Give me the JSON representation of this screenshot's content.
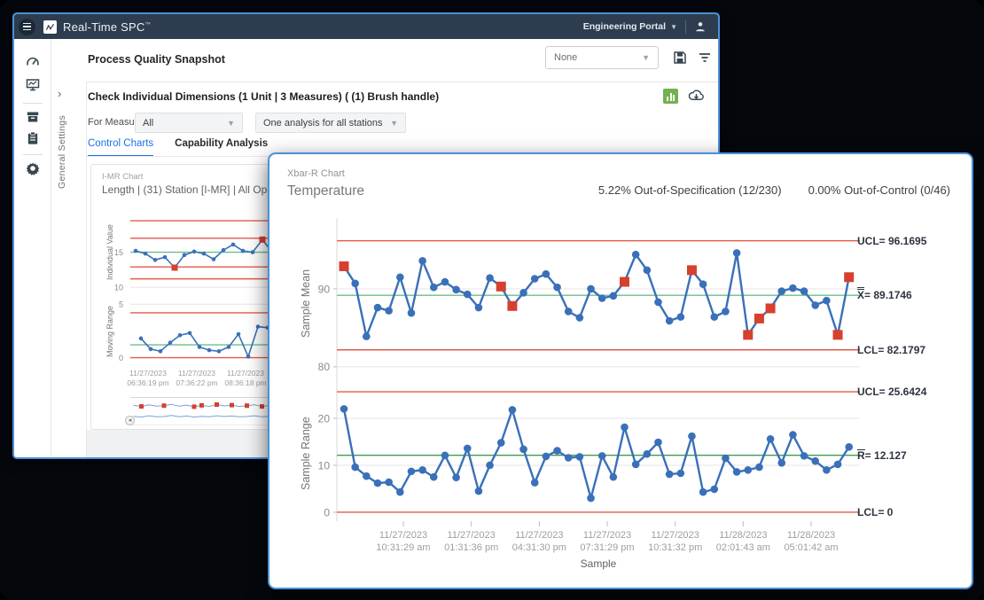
{
  "colors": {
    "accent_blue": "#1a73e8",
    "window_border": "#4a90d9",
    "topbar_bg": "#2d3c4e",
    "series_blue": "#3a70b9",
    "nav_blue": "#7aa3d4",
    "flag_red": "#d6402e",
    "limit_red": "#e25a4a",
    "center_green_light": "#6cbd8c",
    "center_green": "#3f9b4f",
    "button_green": "#73b152",
    "grid_gray": "#e4e4e4"
  },
  "topbar": {
    "app_name": "Real-Time SPC",
    "trademark": "™",
    "portal_label": "Engineering Portal"
  },
  "header": {
    "title": "Process Quality Snapshot",
    "preset_value": "None"
  },
  "sidebar": {
    "icons": [
      "dashboard-gauge",
      "monitor-chart",
      "archive-box",
      "clipboard",
      "settings-gear"
    ]
  },
  "rail": {
    "label": "General Settings",
    "chevron": "›"
  },
  "panel": {
    "title": "Check Individual Dimensions (1 Unit | 3 Measures) ( (1) Brush handle)",
    "for_measure_label": "For Measure:",
    "measure_value": "All",
    "analysis_value": "One analysis for all stations",
    "tab_control": "Control Charts",
    "tab_capability": "Capability Analysis"
  },
  "imr": {
    "pretitle": "I-MR Chart",
    "subtitle": "Length | (31) Station [I-MR] | All Operators",
    "y1_label": "Individual Value",
    "y2_label": "Moving Range",
    "x_ticks": [
      {
        "date": "11/27/2023",
        "time": "06:36:19 pm"
      },
      {
        "date": "11/27/2023",
        "time": "07:36:22 pm"
      },
      {
        "date": "11/27/2023",
        "time": "08:36:18 pm"
      }
    ]
  },
  "overlay": {
    "pretitle": "Xbar-R Chart",
    "title": "Temperature",
    "out_of_spec": "5.22% Out-of-Specification (12/230)",
    "out_of_control": "0.00% Out-of-Control (0/46)",
    "y1_label": "Sample Mean",
    "y2_label": "Sample Range",
    "x_axis_title": "Sample",
    "xbar_labels": {
      "ucl": "UCL= 96.1695",
      "center_letter": "X",
      "center_value": "= 89.1746",
      "lcl": "LCL= 82.1797"
    },
    "range_labels": {
      "ucl": "UCL= 25.6424",
      "center_letter": "R",
      "center_value": "= 12.127",
      "lcl": "LCL= 0"
    },
    "x_ticks": [
      {
        "date": "11/27/2023",
        "time": "10:31:29 am"
      },
      {
        "date": "11/27/2023",
        "time": "01:31:36 pm"
      },
      {
        "date": "11/27/2023",
        "time": "04:31:30 pm"
      },
      {
        "date": "11/27/2023",
        "time": "07:31:29 pm"
      },
      {
        "date": "11/27/2023",
        "time": "10:31:32 pm"
      },
      {
        "date": "11/28/2023",
        "time": "02:01:43 am"
      },
      {
        "date": "11/28/2023",
        "time": "05:01:42 am"
      }
    ]
  },
  "chart_data": [
    {
      "id": "xbar",
      "type": "line",
      "title": "Temperature — Xbar chart",
      "xlabel": "Sample",
      "ylabel": "Sample Mean",
      "ucl": 96.1695,
      "center": 89.1746,
      "lcl": 82.1797,
      "ylim": [
        78.4,
        97.95
      ],
      "grid": [
        {
          "v": 90,
          "label": "90"
        },
        {
          "v": 80,
          "label": "80"
        }
      ],
      "lines": [
        {
          "v": 96.1695,
          "color": "limit_red"
        },
        {
          "v": 89.1746,
          "color": "center_green_light"
        },
        {
          "v": 82.1797,
          "color": "limit_red"
        }
      ],
      "series": [
        {
          "name": "Sample Mean",
          "color": "series_blue",
          "values": [
            92.9,
            90.7,
            83.9,
            87.6,
            87.2,
            91.5,
            86.9,
            93.6,
            90.2,
            90.9,
            89.9,
            89.3,
            87.6,
            91.4,
            90.3,
            87.8,
            89.5,
            91.3,
            91.9,
            90.2,
            87.1,
            86.3,
            90.0,
            88.8,
            89.1,
            90.9,
            94.4,
            92.4,
            88.3,
            85.9,
            86.4,
            92.4,
            90.6,
            86.4,
            87.1,
            94.6,
            84.1,
            86.2,
            87.5,
            89.7,
            90.1,
            89.7,
            87.9,
            88.5,
            84.1,
            91.5
          ],
          "flags": [
            0,
            14,
            15,
            25,
            31,
            36,
            37,
            38,
            44,
            45
          ]
        }
      ]
    },
    {
      "id": "range",
      "type": "line",
      "title": "Temperature — R chart",
      "xlabel": "Sample",
      "ylabel": "Sample Range",
      "ucl": 25.6424,
      "center": 12.127,
      "lcl": 0,
      "ylim": [
        -1.89,
        26.79
      ],
      "grid": [
        {
          "v": 20,
          "label": "20"
        },
        {
          "v": 10,
          "label": "10"
        },
        {
          "v": 0,
          "label": "0"
        }
      ],
      "lines": [
        {
          "v": 25.6424,
          "color": "limit_red"
        },
        {
          "v": 12.127,
          "color": "center_green"
        },
        {
          "v": 0,
          "color": "limit_red"
        }
      ],
      "series": [
        {
          "name": "Sample Range",
          "color": "series_blue",
          "values": [
            22.0,
            9.6,
            7.7,
            6.2,
            6.4,
            4.3,
            8.7,
            9.0,
            7.5,
            12.1,
            7.4,
            13.6,
            4.5,
            10.0,
            14.8,
            21.8,
            13.4,
            6.3,
            11.9,
            13.1,
            11.6,
            11.8,
            3.0,
            12.0,
            7.5,
            18.1,
            10.2,
            12.4,
            14.9,
            8.1,
            8.3,
            16.2,
            4.3,
            4.9,
            11.5,
            8.6,
            9.0,
            9.6,
            15.6,
            10.5,
            16.5,
            12.0,
            10.9,
            9.0,
            10.2,
            13.9
          ],
          "flags": []
        }
      ]
    },
    {
      "id": "imr-individual",
      "type": "line",
      "title": "Length — Individuals chart",
      "ylabel": "Individual Value",
      "ylim": [
        9.0,
        20.9
      ],
      "grid": [
        {
          "v": 15,
          "label": "15"
        },
        {
          "v": 10,
          "label": "10"
        }
      ],
      "lines": [
        {
          "v": 19.5,
          "color": "limit_red"
        },
        {
          "v": 17.0,
          "color": "limit_red"
        },
        {
          "v": 15.0,
          "color": "center_green_light"
        },
        {
          "v": 12.9,
          "color": "limit_red"
        },
        {
          "v": 11.2,
          "color": "limit_red"
        }
      ],
      "series": [
        {
          "name": "Individual Value",
          "color": "series_blue",
          "values": [
            15.2,
            14.8,
            13.9,
            14.3,
            12.8,
            14.6,
            15.1,
            14.8,
            14.0,
            15.3,
            16.1,
            15.2,
            15.0,
            16.8,
            15.0,
            13.7,
            14.2,
            14.0,
            14.5,
            15.2,
            14.6,
            14.9,
            14.3,
            15.5,
            14.8,
            12.7,
            13.9,
            14.6,
            15.1,
            14.4,
            15.7,
            14.9,
            15.2,
            14.5,
            15.0,
            15.4,
            14.7,
            15.1,
            14.6,
            14.9,
            15.3,
            14.8,
            15.1,
            14.7,
            16.5
          ],
          "flags": [
            4,
            13,
            25
          ]
        }
      ]
    },
    {
      "id": "imr-mr",
      "type": "line",
      "title": "Length — Moving Range chart",
      "ylabel": "Moving Range",
      "ylim": [
        -0.7,
        5.6
      ],
      "grid": [
        {
          "v": 5,
          "label": "5"
        },
        {
          "v": 0,
          "label": "0"
        }
      ],
      "lines": [
        {
          "v": 4.2,
          "color": "limit_red"
        },
        {
          "v": 1.2,
          "color": "center_green_light"
        },
        {
          "v": 0,
          "color": "limit_red"
        }
      ],
      "series": [
        {
          "name": "Moving Range",
          "color": "series_blue",
          "values": [
            1.8,
            0.8,
            0.6,
            1.4,
            2.1,
            2.3,
            1.0,
            0.7,
            0.6,
            1.0,
            2.2,
            0.1,
            2.9,
            2.8,
            1.2,
            0.5,
            0.3,
            0.9,
            1.3,
            1.3,
            1.2,
            1.0,
            1.4,
            1.3,
            0.6,
            0.9,
            0.4,
            1.1,
            0.7,
            1.2,
            0.9,
            1.5,
            0.6,
            0.8,
            1.1,
            0.7,
            1.0,
            0.6,
            0.9,
            0.7,
            1.1,
            0.8,
            0.6,
            3.5
          ],
          "flags": []
        }
      ]
    },
    {
      "id": "imr-nav",
      "type": "line",
      "title": "Range navigator",
      "ylim": [
        0,
        10
      ],
      "grid": [],
      "lines": [],
      "series": [
        {
          "name": "navigator-individuals",
          "color": "nav_blue",
          "markers": false,
          "values": [
            7.2,
            6.8,
            7.4,
            6.9,
            7.1,
            7.6,
            6.9,
            7.3,
            6.7,
            7.2,
            6.8,
            7.5,
            7.0,
            7.3,
            6.8,
            7.1,
            7.4,
            6.8,
            7.2,
            6.9,
            7.3,
            6.8,
            7.1,
            7.0,
            7.4,
            6.8,
            7.2,
            6.9,
            7.3,
            7.0,
            7.1,
            6.8,
            7.3,
            7.0,
            7.2,
            6.9,
            7.4,
            7.0,
            7.1,
            6.9,
            7.3,
            7.0,
            7.2,
            6.8,
            7.1,
            7.0,
            7.3,
            6.9,
            7.2,
            7.0,
            7.1,
            6.9,
            7.3,
            7.0,
            7.2,
            6.9,
            7.1,
            7.0,
            7.2,
            7.0
          ],
          "flags": [
            1,
            4,
            8,
            9,
            11,
            13,
            15,
            17,
            21,
            26,
            30,
            35,
            41,
            47,
            52
          ]
        },
        {
          "name": "navigator-moving-range",
          "color": "nav_blue",
          "markers": false,
          "values": [
            3.1,
            2.8,
            3.3,
            2.9,
            3.0,
            3.4,
            2.9,
            3.2,
            2.8,
            3.1,
            2.9,
            3.3,
            3.0,
            3.2,
            2.9,
            3.0,
            3.3,
            2.9,
            3.1,
            2.9,
            3.2,
            2.9,
            3.0,
            3.1,
            3.3,
            2.9,
            3.1,
            2.9,
            3.2,
            3.0,
            3.1,
            2.9,
            3.2,
            3.0,
            3.1,
            2.9,
            3.3,
            3.0,
            3.1,
            2.9,
            3.2,
            3.0,
            3.1,
            2.9,
            3.0,
            3.1,
            3.2,
            2.9,
            3.1,
            3.0,
            3.1,
            2.9,
            3.2,
            3.0,
            3.1,
            2.9,
            3.0,
            3.1,
            3.2,
            3.0
          ],
          "flags": []
        }
      ]
    }
  ]
}
